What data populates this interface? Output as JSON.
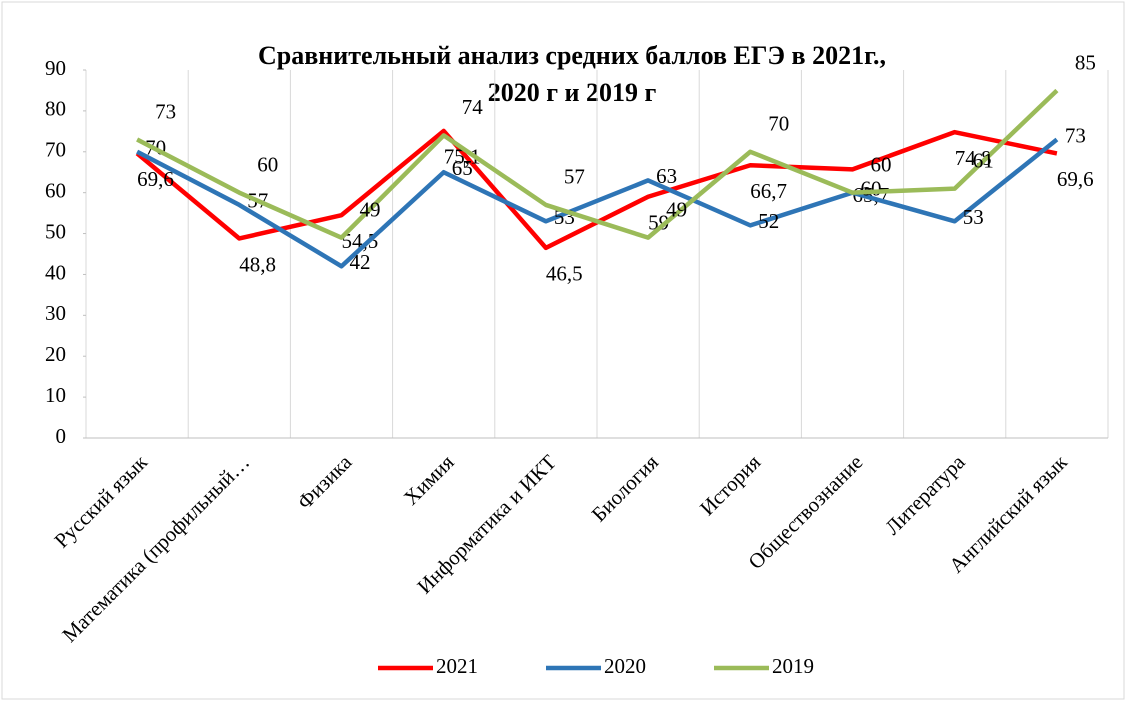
{
  "chart_data": {
    "type": "line",
    "title": [
      "Сравнительный анализ средних баллов ЕГЭ в 2021г.,",
      "2020 г и 2019 г"
    ],
    "categories": [
      "Русский язык",
      "Математика (профильный…",
      "Физика",
      "Химия",
      "Информатика и ИКТ",
      "Биология",
      "История",
      "Обществознание",
      "Литература",
      "Английский язык"
    ],
    "series": [
      {
        "name": "2021",
        "color": "#ff0000",
        "values": [
          69.6,
          48.8,
          54.5,
          75.1,
          46.5,
          59,
          66.7,
          65.7,
          74.8,
          69.6
        ],
        "value_labels": [
          "69,6",
          "48,8",
          "54,5",
          "75,1",
          "46,5",
          "59",
          "66,7",
          "65,7",
          "74,8",
          "69,6"
        ]
      },
      {
        "name": "2020",
        "color": "#2e75b6",
        "values": [
          70,
          57,
          42,
          65,
          53,
          63,
          52,
          60,
          53,
          73
        ]
      },
      {
        "name": "2019",
        "color": "#9bbb59",
        "values": [
          73,
          60,
          49,
          74,
          57,
          49,
          70,
          60,
          61,
          85
        ]
      }
    ],
    "ylim": [
      0,
      90
    ],
    "yticks": [
      0,
      10,
      20,
      30,
      40,
      50,
      60,
      70,
      80,
      90
    ],
    "legend": "bottom"
  }
}
